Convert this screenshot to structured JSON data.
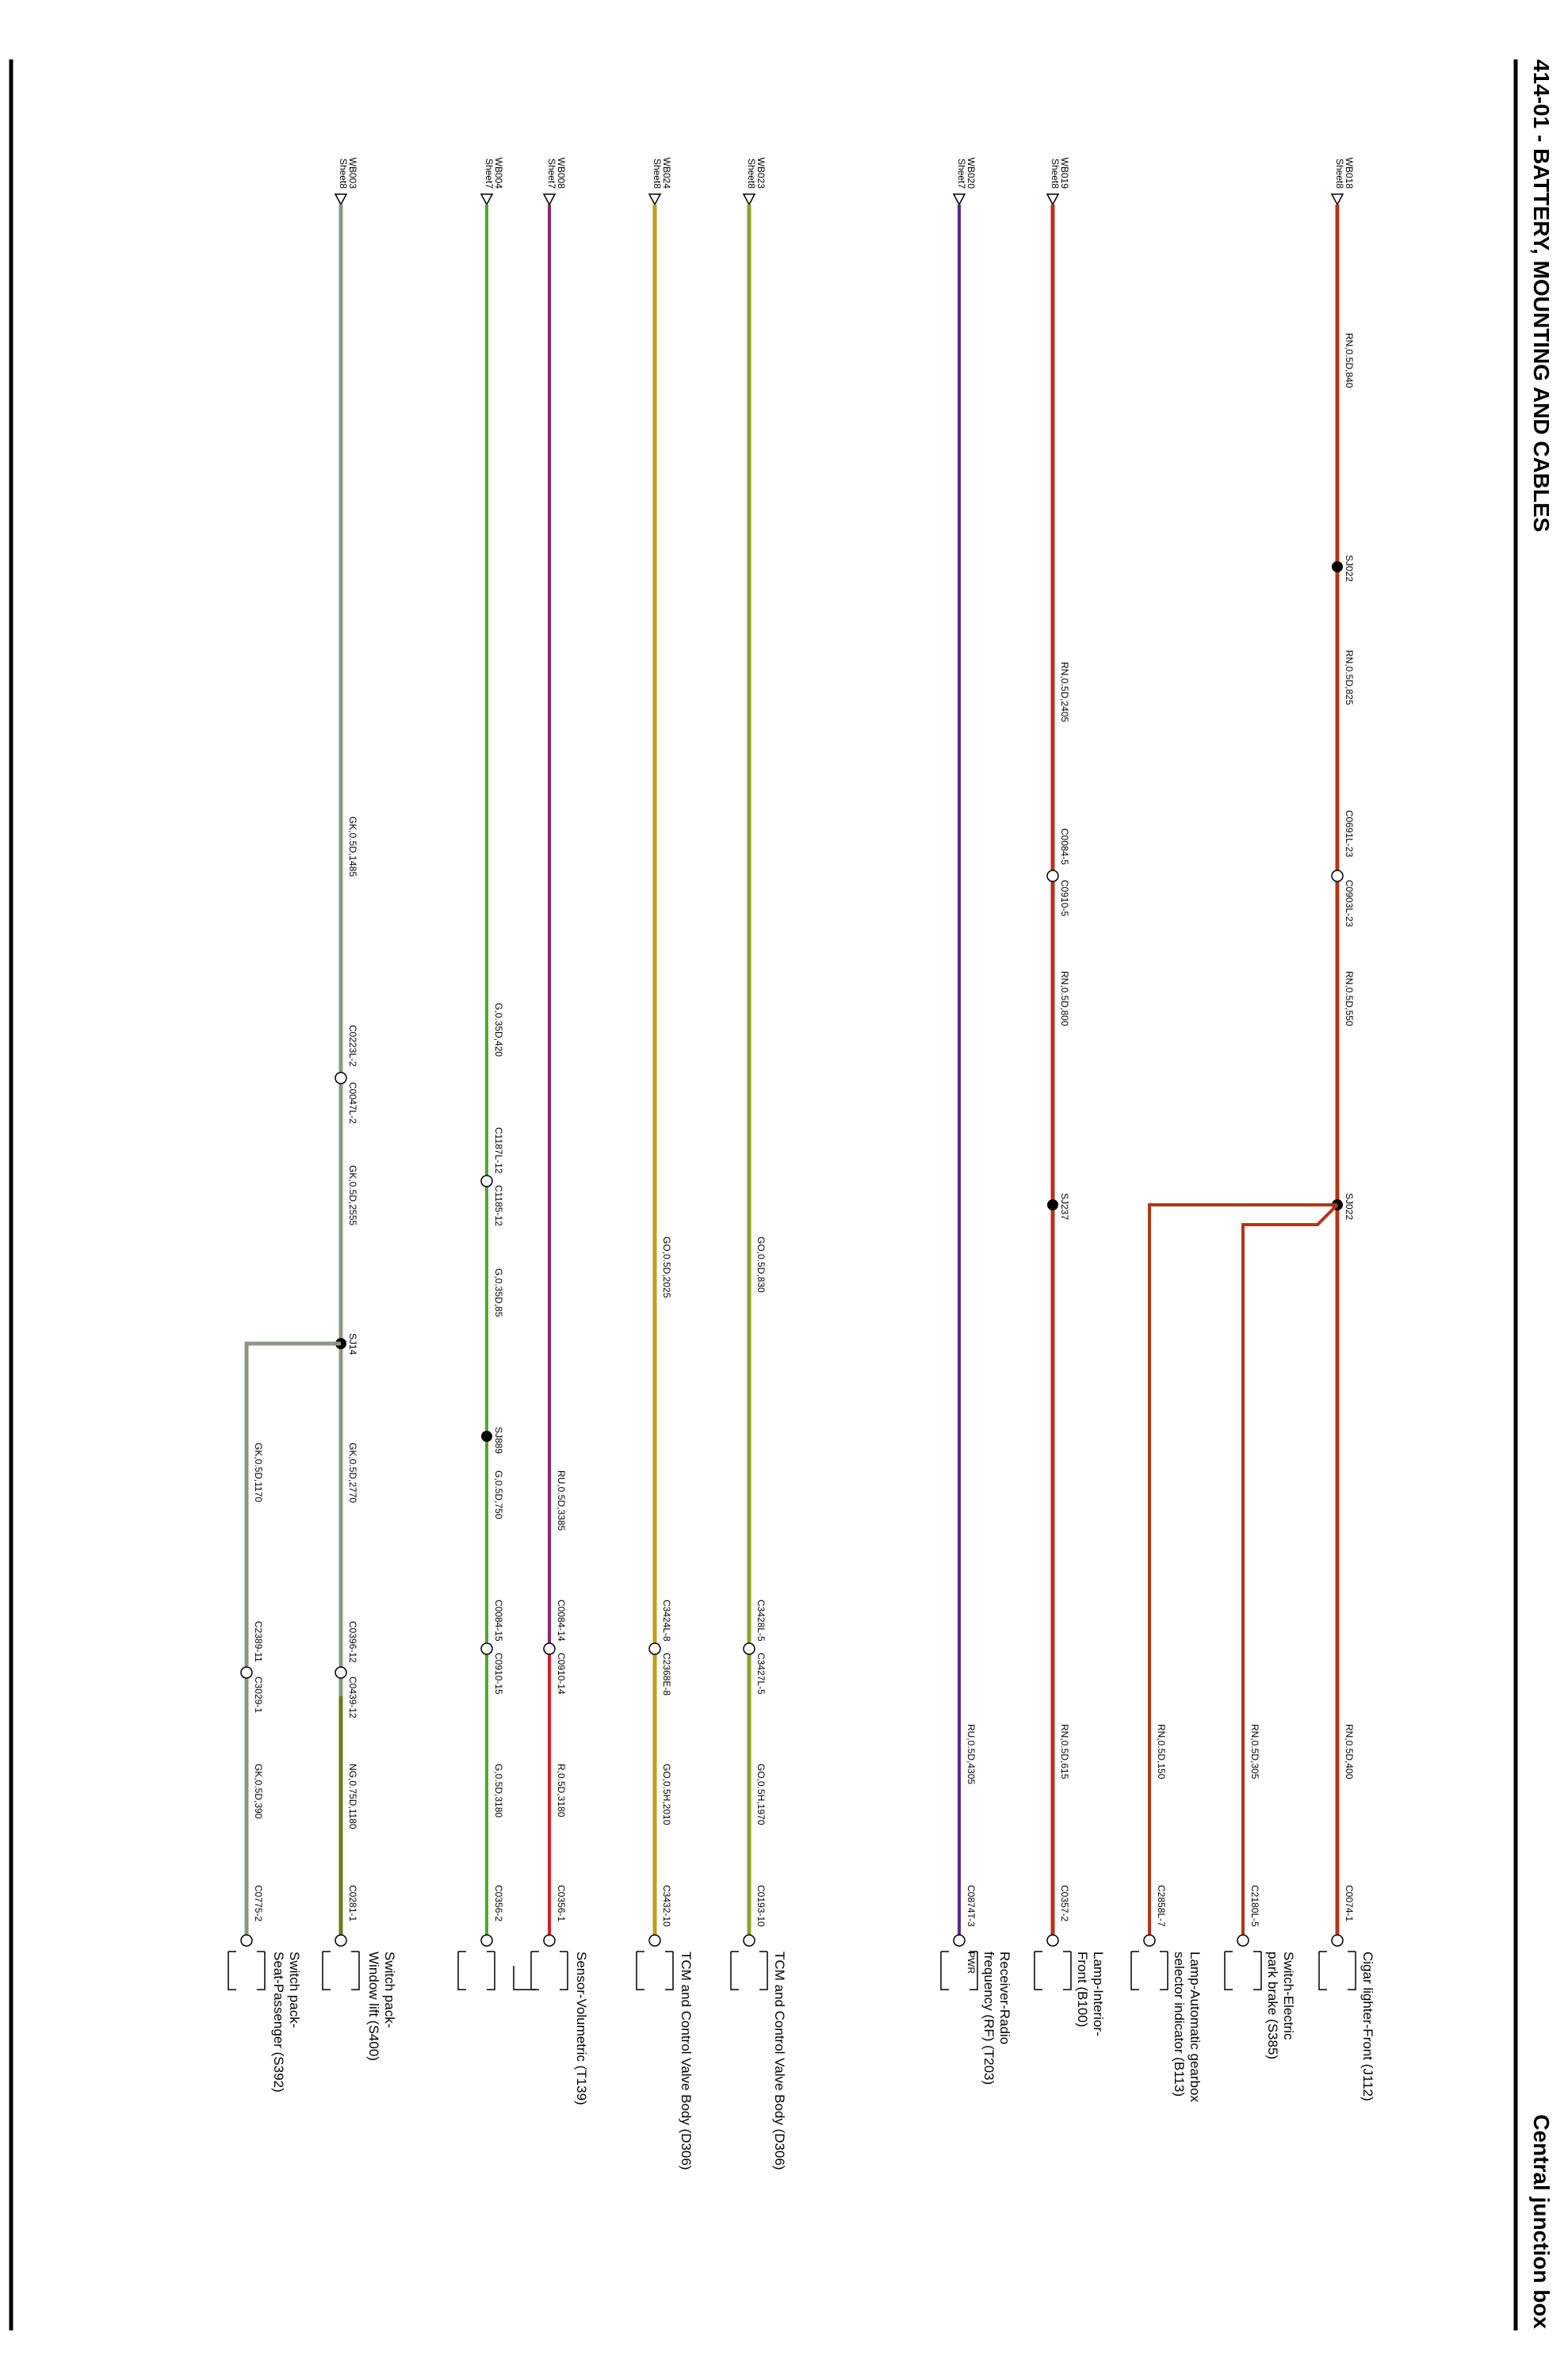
{
  "header": {
    "title": "414-01 - BATTERY, MOUNTING AND CABLES",
    "subtitle": "Central junction box"
  },
  "colors": {
    "RN": "#b5341a",
    "RU": "#5a2a8c",
    "GO": "#8fa12a",
    "G": "#4aaa2a",
    "GK": "#8a9a82",
    "NG": "#6a7a1a",
    "R": "#e01818",
    "RU_purple": "#8a2a6a",
    "GO_gold": "#c09a1a"
  },
  "circuits": [
    {
      "id": "w1",
      "ref": "WB018",
      "sheet": "Sheet8",
      "wires": [
        "RN,0.5D,840",
        "RN,0.5D,825",
        "RN,0.5D,550",
        "RN,0.5D,400"
      ],
      "nodes": [
        "SJ022",
        "C0691L-23",
        "C0903L-23",
        "SJ022",
        "C0074-1"
      ],
      "component": [
        "Cigar lighter-Front (J112)"
      ]
    },
    {
      "id": "w1a",
      "wires": [
        "RN,0.5D,305"
      ],
      "nodes": [
        "C2180L-5"
      ],
      "component": [
        "Switch-Electric",
        "park brake (S385)"
      ]
    },
    {
      "id": "w1b",
      "wires": [
        "RN,0.5D,150"
      ],
      "nodes": [
        "C2858L-7"
      ],
      "component": [
        "Lamp-Automatic gearbox",
        "selector indicator (B113)"
      ]
    },
    {
      "id": "w2",
      "ref": "WB019",
      "sheet": "Sheet8",
      "wires": [
        "RN,0.5D,2405",
        "RN,0.5D,800",
        "RN,0.5D,615"
      ],
      "nodes": [
        "C0084-5",
        "C0910-5",
        "SJ237",
        "C0357-2"
      ],
      "component": [
        "Lamp-Interior-",
        "Front (B100)"
      ]
    },
    {
      "id": "w3",
      "ref": "WB020",
      "sheet": "Sheet7",
      "wires": [
        "RU,0.5D,4305"
      ],
      "nodes": [
        "C0874T-3"
      ],
      "component": [
        "Receiver-Radio",
        "frequency (RF) (T203)"
      ],
      "pin": "PWR"
    },
    {
      "id": "w4",
      "ref": "WB023",
      "sheet": "Sheet8",
      "wires": [
        "GO,0.5D,830",
        "GO,0.5H,1970"
      ],
      "nodes": [
        "C3428L-5",
        "C3427L-5",
        "C0193-10"
      ],
      "component": [
        "TCM and Control Valve Body (D306)"
      ]
    },
    {
      "id": "w5",
      "ref": "WB024",
      "sheet": "Sheet8",
      "wires": [
        "GO,0.5D,2025",
        "GO,0.5H,2010"
      ],
      "nodes": [
        "C3424L-8",
        "C2368E-8",
        "C3432-10"
      ],
      "component": [
        "TCM and Control Valve Body (D306)"
      ]
    },
    {
      "id": "w6",
      "ref": "WB008",
      "sheet": "Sheet7",
      "wires": [
        "RU,0.5D,3385",
        "R,0.5D,3180"
      ],
      "nodes": [
        "C0084-14",
        "C0910-14",
        "C0356-1"
      ],
      "component": [
        "Sensor-Volumetric (T139)"
      ]
    },
    {
      "id": "w7",
      "ref": "WB004",
      "sheet": "Sheet7",
      "wires": [
        "G,0.35D,420",
        "G,0.35D,85",
        "G,0.5D,750",
        "G,0.5D,3180"
      ],
      "nodes": [
        "C1187L-12",
        "C1185-12",
        "SJ889",
        "C0084-15",
        "C0910-15",
        "C0356-2"
      ]
    },
    {
      "id": "w8",
      "ref": "WB003",
      "sheet": "Sheet8",
      "wires": [
        "GK,0.5D,1485",
        "GK,0.5D,2555",
        "GK,0.5D,2770",
        "NG,0.75D,1180"
      ],
      "nodes": [
        "C0223L-2",
        "C0047L-2",
        "SJ14",
        "C0396-12",
        "C0439-12",
        "C0281-1"
      ],
      "component": [
        "Switch pack-",
        "Window lift (S400)"
      ]
    },
    {
      "id": "w8a",
      "wires": [
        "GK,0.5D,1170",
        "GK,0.5D,390"
      ],
      "nodes": [
        "C2389-11",
        "C3029-1",
        "C0775-2"
      ],
      "component": [
        "Switch pack-",
        "Seat-Passenger (S392)"
      ]
    }
  ]
}
